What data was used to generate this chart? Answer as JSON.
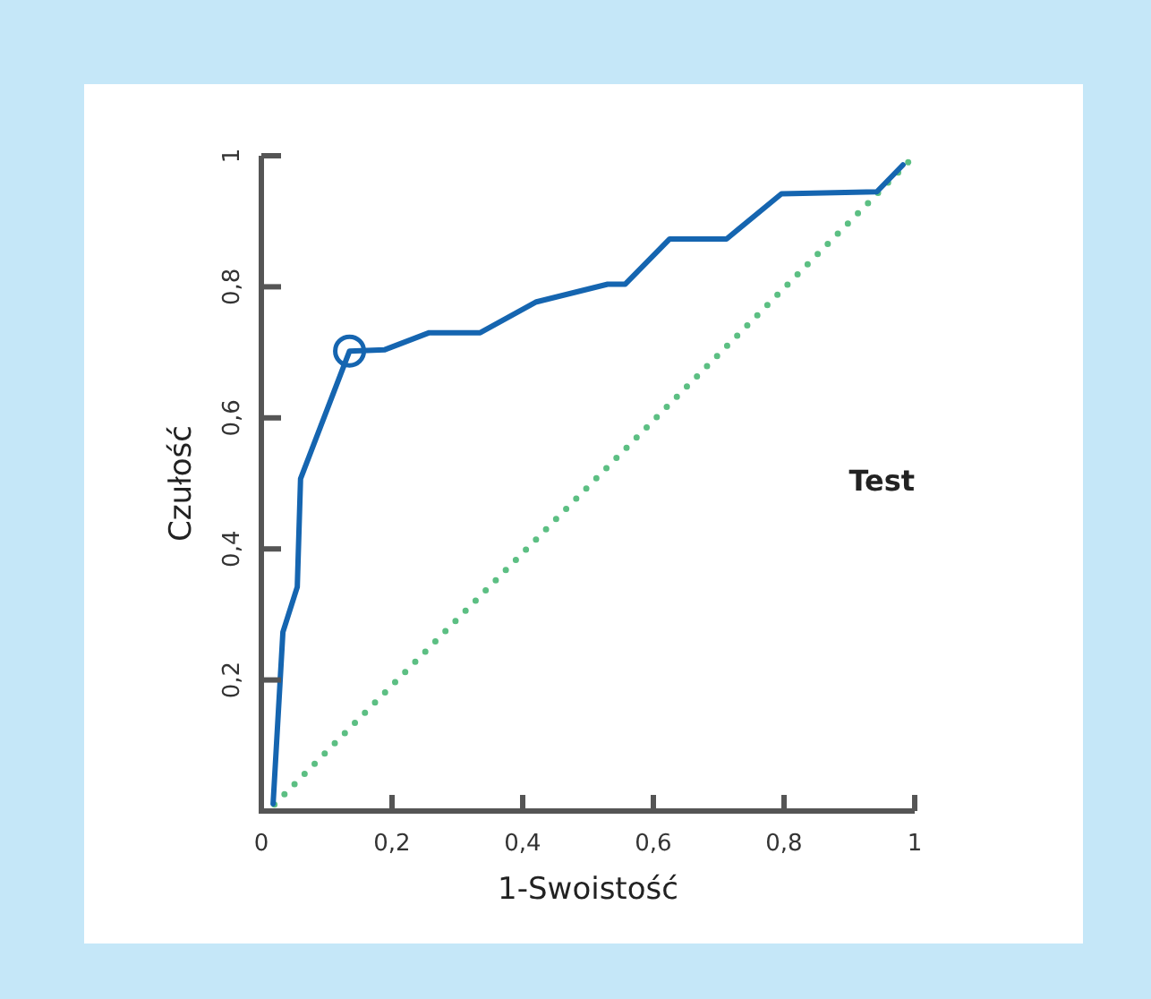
{
  "chart_data": {
    "type": "line",
    "xlabel": "1-Swoistość",
    "ylabel": "Czułość",
    "annotations": [
      "Test"
    ],
    "xlim": [
      0,
      1
    ],
    "ylim": [
      0,
      1
    ],
    "xticks": [
      {
        "value": 0,
        "label": "0"
      },
      {
        "value": 0.2,
        "label": "0,2"
      },
      {
        "value": 0.4,
        "label": "0,4"
      },
      {
        "value": 0.6,
        "label": "0,6"
      },
      {
        "value": 0.8,
        "label": "0,8"
      },
      {
        "value": 1,
        "label": "1"
      }
    ],
    "yticks": [
      {
        "value": 0.2,
        "label": "0,2"
      },
      {
        "value": 0.4,
        "label": "0,4"
      },
      {
        "value": 0.6,
        "label": "0,6"
      },
      {
        "value": 0.8,
        "label": "0,8"
      },
      {
        "value": 1,
        "label": "1"
      }
    ],
    "series": [
      {
        "color": "#1565b0",
        "marker": "none",
        "line_style": "solid",
        "x": [
          0.018,
          0.033,
          0.055,
          0.06,
          0.135,
          0.189,
          0.257,
          0.335,
          0.421,
          0.53,
          0.557,
          0.625,
          0.712,
          0.796,
          0.942,
          0.982
        ],
        "values": [
          0.011,
          0.273,
          0.342,
          0.507,
          0.702,
          0.704,
          0.73,
          0.73,
          0.777,
          0.804,
          0.804,
          0.873,
          0.873,
          0.942,
          0.945,
          0.986
        ]
      },
      {
        "type": "line",
        "color": "#5cbf83",
        "marker": "none",
        "line_style": "dotted",
        "x": [
          0.02,
          1
        ],
        "values": [
          0.01,
          1
        ]
      },
      {
        "type": "scatter",
        "color": "#1565b0",
        "marker": "circle",
        "x": [
          0.135
        ],
        "values": [
          0.702
        ]
      }
    ]
  }
}
